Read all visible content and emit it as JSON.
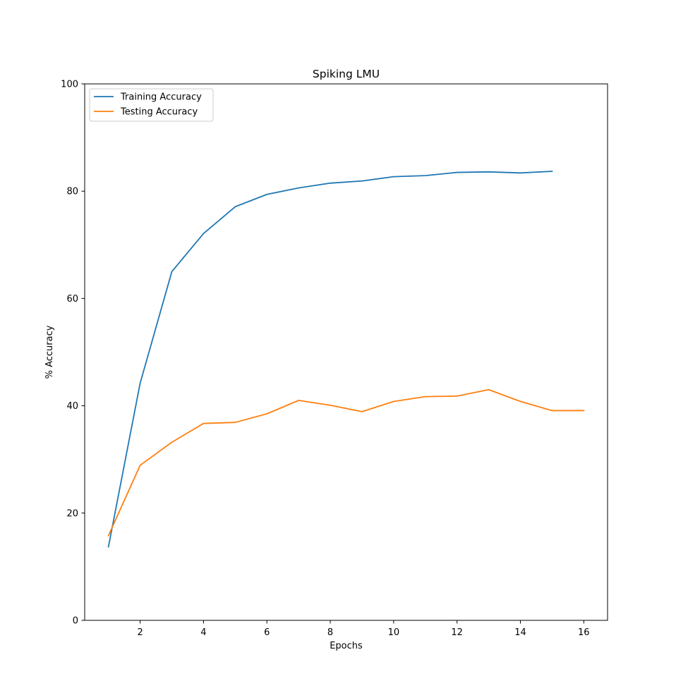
{
  "chart_data": {
    "type": "line",
    "title": "Spiking LMU",
    "xlabel": "Epochs",
    "ylabel": "% Accuracy",
    "xlim": [
      0.25,
      16.75
    ],
    "ylim": [
      0,
      100
    ],
    "xticks": [
      2,
      4,
      6,
      8,
      10,
      12,
      14,
      16
    ],
    "yticks": [
      0,
      20,
      40,
      60,
      80,
      100
    ],
    "grid": false,
    "legend_position": "top-left",
    "series": [
      {
        "name": "Training Accuracy",
        "color": "#1f77b4",
        "x": [
          1,
          2,
          3,
          4,
          5,
          6,
          7,
          8,
          9,
          10,
          11,
          12,
          13,
          14,
          15
        ],
        "values": [
          13.7,
          44.2,
          65.0,
          72.1,
          77.1,
          79.4,
          80.6,
          81.5,
          81.9,
          82.7,
          82.9,
          83.5,
          83.6,
          83.4,
          83.7
        ]
      },
      {
        "name": "Testing Accuracy",
        "color": "#ff7f0e",
        "x": [
          1,
          2,
          3,
          4,
          5,
          6,
          7,
          8,
          9,
          10,
          11,
          12,
          13,
          14,
          15,
          16
        ],
        "values": [
          15.8,
          28.9,
          33.2,
          36.7,
          36.9,
          38.5,
          41.0,
          40.1,
          38.9,
          40.8,
          41.7,
          41.8,
          43.0,
          40.8,
          39.1,
          39.1
        ]
      }
    ]
  }
}
